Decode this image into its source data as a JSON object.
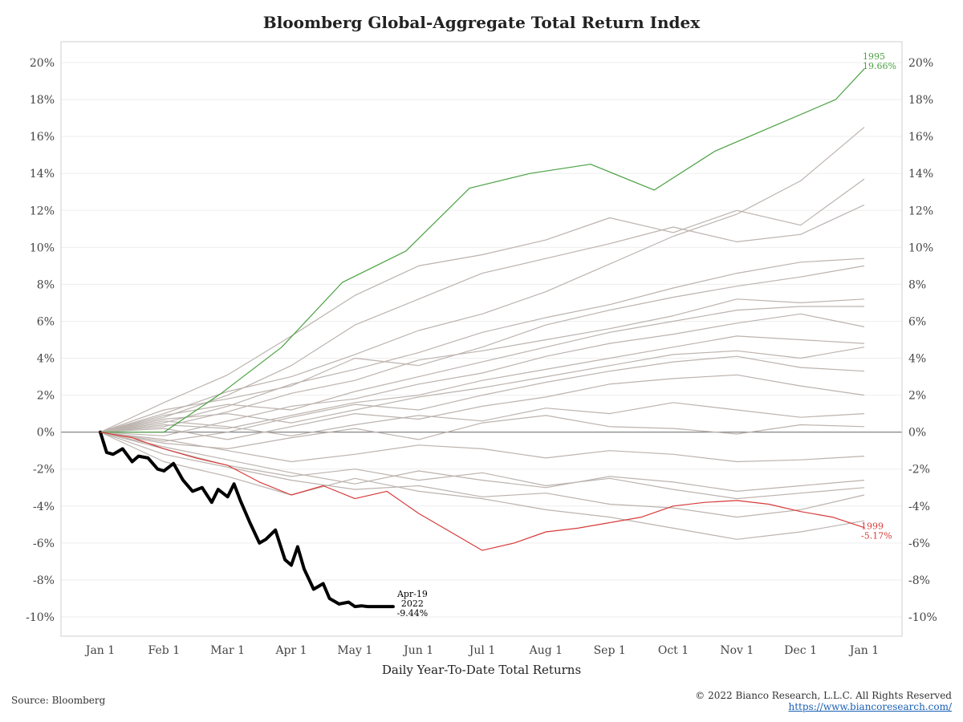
{
  "chart_data": {
    "type": "line",
    "title": "Bloomberg Global-Aggregate Total Return Index",
    "xlabel": "Daily Year-To-Date Total Returns",
    "ylabel": "",
    "ylim": [
      -10,
      20
    ],
    "y_unit": "%",
    "y_ticks": [
      "20%",
      "18%",
      "16%",
      "14%",
      "12%",
      "10%",
      "8%",
      "6%",
      "4%",
      "2%",
      "0%",
      "-2%",
      "-4%",
      "-6%",
      "-8%",
      "-10%"
    ],
    "x_ticks": [
      "Jan 1",
      "Feb 1",
      "Mar 1",
      "Apr 1",
      "May 1",
      "Jun 1",
      "Jul 1",
      "Aug 1",
      "Sep 1",
      "Oct 1",
      "Nov 1",
      "Dec 1",
      "Jan 1"
    ],
    "grid": true,
    "x_month": [
      0,
      1,
      2,
      3,
      4,
      5,
      6,
      7,
      8,
      9,
      10,
      11,
      12
    ],
    "series": [
      {
        "name": "2022",
        "color": "#000000",
        "x_month": [
          0,
          0.1,
          0.2,
          0.35,
          0.5,
          0.6,
          0.75,
          0.9,
          1.0,
          1.15,
          1.3,
          1.45,
          1.6,
          1.75,
          1.85,
          2.0,
          2.1,
          2.2,
          2.35,
          2.5,
          2.6,
          2.75,
          2.9,
          3.0,
          3.1,
          3.2,
          3.35,
          3.5,
          3.6,
          3.75,
          3.9,
          4.0,
          4.1,
          4.2,
          4.3,
          4.35,
          4.45,
          4.6
        ],
        "values": [
          0,
          -1.1,
          -1.2,
          -0.9,
          -1.6,
          -1.3,
          -1.4,
          -2.0,
          -2.1,
          -1.7,
          -2.6,
          -3.2,
          -3.0,
          -3.8,
          -3.1,
          -3.5,
          -2.8,
          -3.7,
          -4.9,
          -6.0,
          -5.8,
          -5.3,
          -6.9,
          -7.2,
          -6.2,
          -7.4,
          -8.5,
          -8.2,
          -9.0,
          -9.3,
          -9.2,
          -9.44,
          -9.4,
          -9.44,
          -9.44,
          -9.44,
          -9.44,
          -9.44
        ],
        "label": "Apr-19 2022 -9.44%"
      },
      {
        "name": "1995",
        "color": "#4aa142",
        "x_month": [
          0,
          1,
          1.9,
          1.9,
          2.85,
          2.85,
          3.8,
          3.8,
          4.8,
          4.8,
          5.8,
          5.8,
          6.75,
          6.75,
          7.7,
          7.7,
          8.7,
          8.7,
          9.65,
          9.65,
          10.6,
          10.6,
          11.55,
          11.55,
          12.0,
          12.0
        ],
        "values": [
          0,
          0,
          2.1,
          2.1,
          4.6,
          4.6,
          8.1,
          8.1,
          9.8,
          9.8,
          13.2,
          13.2,
          14.0,
          14.0,
          14.5,
          14.5,
          13.1,
          13.1,
          15.2,
          15.2,
          16.6,
          16.6,
          18.0,
          18.0,
          19.66,
          19.66
        ],
        "label": "1995 19.66%"
      },
      {
        "name": "1999",
        "color": "#d73a3a",
        "x_month": [
          0,
          0.5,
          1.0,
          1.5,
          2.0,
          2.5,
          3.0,
          3.5,
          4.0,
          4.5,
          5.0,
          5.5,
          6.0,
          6.5,
          7.0,
          7.5,
          8.0,
          8.5,
          9.0,
          9.5,
          10.0,
          10.5,
          11.0,
          11.5,
          12.0
        ],
        "values": [
          0,
          -0.3,
          -0.9,
          -1.4,
          -1.8,
          -2.7,
          -3.4,
          -2.9,
          -3.6,
          -3.2,
          -4.4,
          -5.4,
          -6.4,
          -6.0,
          -5.4,
          -5.2,
          -4.9,
          -4.6,
          -4.0,
          -3.8,
          -3.7,
          -3.9,
          -4.3,
          -4.6,
          -5.17
        ],
        "label": "1999 -5.17%"
      }
    ],
    "background_series": [
      {
        "x_month": [
          0,
          1,
          2,
          3,
          4,
          5,
          6,
          7,
          8,
          9,
          10,
          11,
          12
        ],
        "values": [
          0,
          1.0,
          2.2,
          3.0,
          4.2,
          5.5,
          6.4,
          7.6,
          9.1,
          10.6,
          11.8,
          13.6,
          16.5
        ]
      },
      {
        "x_month": [
          0,
          1,
          2,
          3,
          4,
          5,
          6,
          7,
          8,
          9,
          10,
          11,
          12
        ],
        "values": [
          0,
          1.6,
          3.1,
          5.2,
          7.4,
          9.0,
          9.6,
          10.4,
          11.6,
          10.8,
          12.0,
          11.2,
          13.7
        ]
      },
      {
        "x_month": [
          0,
          1,
          2,
          3,
          4,
          5,
          6,
          7,
          8,
          9,
          10,
          11,
          12
        ],
        "values": [
          0,
          0.8,
          2.0,
          3.6,
          5.8,
          7.2,
          8.6,
          9.4,
          10.2,
          11.1,
          10.3,
          10.7,
          12.3
        ]
      },
      {
        "x_month": [
          0,
          1,
          2,
          3,
          4,
          5,
          6,
          7,
          8,
          9,
          10,
          11,
          12
        ],
        "values": [
          0,
          0.5,
          1.4,
          2.6,
          3.4,
          4.3,
          5.4,
          6.2,
          6.9,
          7.8,
          8.6,
          9.2,
          9.4
        ]
      },
      {
        "x_month": [
          0,
          1,
          2,
          3,
          4,
          5,
          6,
          7,
          8,
          9,
          10,
          11,
          12
        ],
        "values": [
          0,
          1.2,
          1.8,
          2.5,
          4.0,
          3.6,
          4.6,
          5.8,
          6.6,
          7.3,
          7.9,
          8.4,
          9.0
        ]
      },
      {
        "x_month": [
          0,
          1,
          2,
          3,
          4,
          5,
          6,
          7,
          8,
          9,
          10,
          11,
          12
        ],
        "values": [
          0,
          0.3,
          1.1,
          2.1,
          2.8,
          3.9,
          4.4,
          5.0,
          5.6,
          6.3,
          7.2,
          7.0,
          7.2
        ]
      },
      {
        "x_month": [
          0,
          1,
          2,
          3,
          4,
          5,
          6,
          7,
          8,
          9,
          10,
          11,
          12
        ],
        "values": [
          0,
          0.9,
          1.5,
          1.2,
          2.2,
          3.0,
          3.8,
          4.6,
          5.4,
          6.0,
          6.6,
          6.8,
          6.8
        ]
      },
      {
        "x_month": [
          0,
          1,
          2,
          3,
          4,
          5,
          6,
          7,
          8,
          9,
          10,
          11,
          12
        ],
        "values": [
          0,
          -0.2,
          0.6,
          1.4,
          1.8,
          2.6,
          3.2,
          4.1,
          4.8,
          5.3,
          5.9,
          6.4,
          5.7
        ]
      },
      {
        "x_month": [
          0,
          1,
          2,
          3,
          4,
          5,
          6,
          7,
          8,
          9,
          10,
          11,
          12
        ],
        "values": [
          0,
          0.4,
          0.2,
          0.9,
          1.6,
          2.0,
          2.8,
          3.4,
          4.0,
          4.6,
          5.2,
          5.0,
          4.8
        ]
      },
      {
        "x_month": [
          0,
          1,
          2,
          3,
          4,
          5,
          6,
          7,
          8,
          9,
          10,
          11,
          12
        ],
        "values": [
          0,
          0.7,
          1.0,
          0.5,
          1.2,
          1.9,
          2.4,
          3.0,
          3.6,
          4.2,
          4.4,
          4.0,
          4.6
        ]
      },
      {
        "x_month": [
          0,
          1,
          2,
          3,
          4,
          5,
          6,
          7,
          8,
          9,
          10,
          11,
          12
        ],
        "values": [
          0,
          -0.5,
          0.0,
          0.8,
          1.5,
          1.2,
          2.0,
          2.7,
          3.3,
          3.8,
          4.1,
          3.5,
          3.3
        ]
      },
      {
        "x_month": [
          0,
          1,
          2,
          3,
          4,
          5,
          6,
          7,
          8,
          9,
          10,
          11,
          12
        ],
        "values": [
          0,
          0.2,
          -0.4,
          0.3,
          1.0,
          0.7,
          1.4,
          1.9,
          2.6,
          2.9,
          3.1,
          2.5,
          2.0
        ]
      },
      {
        "x_month": [
          0,
          1,
          2,
          3,
          4,
          5,
          6,
          7,
          8,
          9,
          10,
          11,
          12
        ],
        "values": [
          0,
          0.6,
          0.3,
          -0.2,
          0.4,
          0.9,
          0.6,
          1.3,
          1.0,
          1.6,
          1.2,
          0.8,
          1.0
        ]
      },
      {
        "x_month": [
          0,
          1,
          2,
          3,
          4,
          5,
          6,
          7,
          8,
          9,
          10,
          11,
          12
        ],
        "values": [
          0,
          -0.6,
          -0.9,
          -0.3,
          0.2,
          -0.4,
          0.5,
          0.9,
          0.3,
          0.2,
          -0.1,
          0.4,
          0.3
        ]
      },
      {
        "x_month": [
          0,
          1,
          2,
          3,
          4,
          5,
          6,
          7,
          8,
          9,
          10,
          11,
          12
        ],
        "values": [
          0,
          -0.4,
          -1.0,
          -1.6,
          -1.2,
          -0.7,
          -0.9,
          -1.4,
          -1.0,
          -1.2,
          -1.6,
          -1.5,
          -1.3
        ]
      },
      {
        "x_month": [
          0,
          1,
          2,
          3,
          4,
          5,
          6,
          7,
          8,
          9,
          10,
          11,
          12
        ],
        "values": [
          0,
          -0.8,
          -1.5,
          -2.2,
          -2.8,
          -2.1,
          -2.6,
          -3.0,
          -2.4,
          -2.7,
          -3.2,
          -2.9,
          -2.6
        ]
      },
      {
        "x_month": [
          0,
          1,
          2,
          3,
          4,
          5,
          6,
          7,
          8,
          9,
          10,
          11,
          12
        ],
        "values": [
          0,
          -1.2,
          -1.9,
          -2.6,
          -3.1,
          -2.9,
          -3.5,
          -3.3,
          -3.9,
          -4.1,
          -4.6,
          -4.2,
          -3.4
        ]
      },
      {
        "x_month": [
          0,
          1,
          2,
          3,
          4,
          5,
          6,
          7,
          8,
          9,
          10,
          11,
          12
        ],
        "values": [
          0,
          -1.6,
          -2.4,
          -3.4,
          -2.5,
          -3.2,
          -3.6,
          -4.2,
          -4.6,
          -5.2,
          -5.8,
          -5.4,
          -4.8
        ]
      },
      {
        "x_month": [
          0,
          1,
          2,
          3,
          4,
          5,
          6,
          7,
          8,
          9,
          10,
          11,
          12
        ],
        "values": [
          0,
          -0.9,
          -1.8,
          -2.4,
          -2.0,
          -2.6,
          -2.2,
          -2.9,
          -2.5,
          -3.1,
          -3.6,
          -3.3,
          -3.0
        ]
      }
    ]
  },
  "footer": {
    "source": "Source: Bloomberg",
    "copyright": "© 2022 Bianco Research, L.L.C. All Rights Reserved",
    "url": "https://www.biancoresearch.com/"
  }
}
